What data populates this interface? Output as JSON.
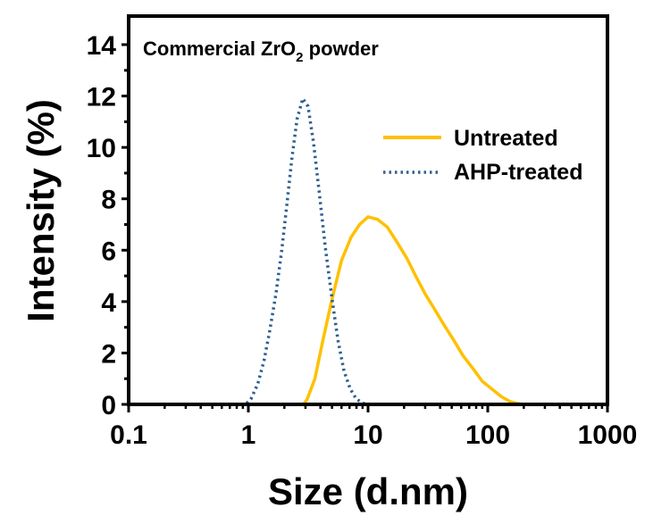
{
  "chart_data": {
    "type": "line",
    "title": "Commercial ZrO2 powder",
    "title_parts": {
      "main": "Commercial ZrO",
      "subscript": "2",
      "suffix": " powder"
    },
    "xlabel": "Size (d.nm)",
    "ylabel": "Intensity (%)",
    "xscale": "log",
    "xlim": [
      0.1,
      1000
    ],
    "ylim": [
      0,
      14
    ],
    "xticks": [
      0.1,
      1,
      10,
      100,
      1000
    ],
    "xtick_labels": [
      "0.1",
      "1",
      "10",
      "100",
      "1000"
    ],
    "yticks": [
      0,
      2,
      4,
      6,
      8,
      10,
      12,
      14
    ],
    "ytick_labels": [
      "0",
      "2",
      "4",
      "6",
      "8",
      "10",
      "12",
      "14"
    ],
    "grid": false,
    "legend_position": "top-right",
    "series": [
      {
        "name": "Untreated",
        "color": "#FFC000",
        "style": "solid",
        "x": [
          0.4,
          1,
          2.9,
          3.1,
          3.6,
          4.2,
          5,
          6,
          7.2,
          8.5,
          10,
          12,
          14.5,
          17.5,
          21,
          25,
          30,
          36,
          43,
          52,
          62,
          75,
          90,
          108,
          130,
          155,
          190,
          1000
        ],
        "y": [
          0,
          0,
          0,
          0.2,
          1.0,
          2.5,
          4.1,
          5.6,
          6.5,
          7.0,
          7.3,
          7.2,
          6.9,
          6.3,
          5.7,
          5.0,
          4.3,
          3.7,
          3.1,
          2.5,
          1.9,
          1.4,
          0.9,
          0.6,
          0.3,
          0.1,
          0,
          0
        ]
      },
      {
        "name": "AHP-treated",
        "color": "#2F5F8F",
        "style": "dotted",
        "x": [
          0.4,
          0.95,
          1.05,
          1.2,
          1.35,
          1.5,
          1.7,
          1.9,
          2.1,
          2.3,
          2.55,
          2.85,
          3.15,
          3.5,
          3.9,
          4.4,
          5,
          5.6,
          6.3,
          7.1,
          8,
          9.5,
          1000
        ],
        "y": [
          0,
          0,
          0.2,
          0.8,
          1.7,
          2.8,
          4.3,
          6.0,
          7.8,
          9.5,
          11.1,
          11.9,
          11.6,
          10.2,
          8.3,
          6.1,
          4.1,
          2.5,
          1.3,
          0.6,
          0.2,
          0,
          0
        ]
      }
    ]
  }
}
